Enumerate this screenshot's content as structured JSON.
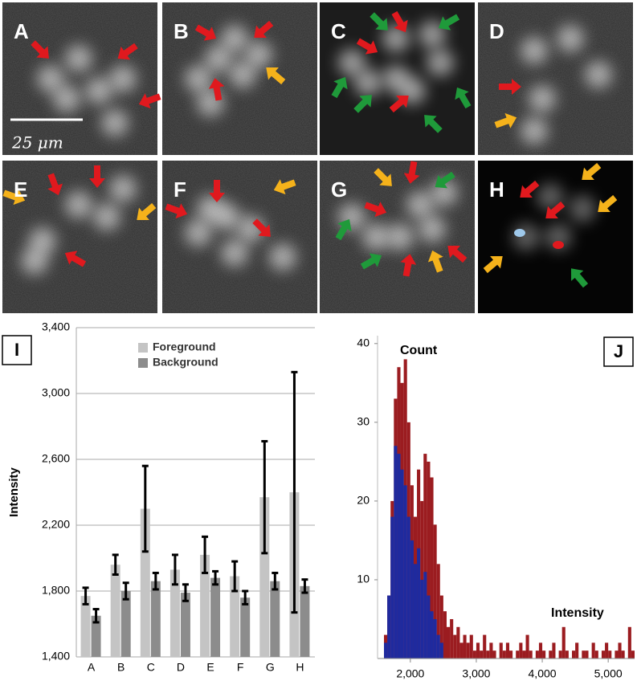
{
  "image_panels": {
    "labels": [
      "A",
      "B",
      "C",
      "D",
      "E",
      "F",
      "G",
      "H"
    ],
    "scale_bar": "25 μm"
  },
  "chart_data": [
    {
      "type": "bar",
      "panel_label": "I",
      "ylabel": "Intensity",
      "categories": [
        "A",
        "B",
        "C",
        "D",
        "E",
        "F",
        "G",
        "H"
      ],
      "series": [
        {
          "name": "Foreground",
          "color": "#c4c4c4",
          "values": [
            1770,
            1960,
            2300,
            1930,
            2020,
            1890,
            2370,
            2400
          ],
          "errors": [
            50,
            60,
            260,
            90,
            110,
            90,
            340,
            730
          ]
        },
        {
          "name": "Background",
          "color": "#8c8c8c",
          "values": [
            1650,
            1800,
            1860,
            1790,
            1880,
            1760,
            1860,
            1830
          ],
          "errors": [
            40,
            50,
            50,
            50,
            40,
            40,
            50,
            40
          ]
        }
      ],
      "ylim": [
        1400,
        3400
      ],
      "yticks": [
        {
          "value": 1400,
          "label": "1,400"
        },
        {
          "value": 1800,
          "label": "1,800"
        },
        {
          "value": 2200,
          "label": "2,200"
        },
        {
          "value": 2600,
          "label": "2,600"
        },
        {
          "value": 3000,
          "label": "3,000"
        },
        {
          "value": 3400,
          "label": "3,400"
        }
      ],
      "grid": true,
      "legend": "top"
    },
    {
      "type": "histogram",
      "panel_label": "J",
      "ylabel": "Count",
      "xlabel": "Intensity",
      "bins": [
        1600,
        1650,
        1700,
        1750,
        1800,
        1850,
        1900,
        1950,
        2000,
        2050,
        2100,
        2150,
        2200,
        2250,
        2300,
        2350,
        2400,
        2450,
        2500,
        2550,
        2600,
        2650,
        2700,
        2750,
        2800,
        2850,
        2900,
        2950,
        3000,
        3050,
        3100,
        3150,
        3200,
        3250,
        3300,
        3350,
        3400,
        3450,
        3500,
        3550,
        3600,
        3650,
        3700,
        3750,
        3800,
        3850,
        3900,
        3950,
        4000,
        4050,
        4100,
        4150,
        4200,
        4250,
        4300,
        4350,
        4400,
        4450,
        4500,
        4550,
        4600,
        4650,
        4700,
        4750,
        4800,
        4850,
        4900,
        4950,
        5000,
        5050,
        5100,
        5150,
        5200,
        5250,
        5300,
        5350,
        5400
      ],
      "series": [
        {
          "color": "#9b1c20",
          "values": [
            3,
            8,
            20,
            33,
            37,
            35,
            38,
            30,
            22,
            18,
            24,
            20,
            26,
            25,
            23,
            17,
            12,
            8,
            6,
            4,
            5,
            3,
            4,
            2,
            3,
            2,
            3,
            1,
            2,
            1,
            3,
            1,
            2,
            1,
            0,
            2,
            1,
            2,
            1,
            0,
            1,
            2,
            1,
            3,
            1,
            0,
            1,
            2,
            1,
            0,
            1,
            2,
            0,
            1,
            4,
            1,
            0,
            1,
            2,
            0,
            1,
            1,
            0,
            2,
            1,
            0,
            1,
            2,
            1,
            0,
            1,
            2,
            1,
            0,
            4,
            1
          ]
        },
        {
          "color": "#1f2a9e",
          "values": [
            2,
            8,
            18,
            27,
            26,
            24,
            22,
            18,
            15,
            12,
            14,
            10,
            11,
            8,
            6,
            5,
            3,
            2,
            0,
            0,
            0,
            0,
            0,
            0,
            0,
            0,
            0,
            0,
            0,
            0,
            0,
            0,
            0,
            0,
            0,
            0,
            0,
            0,
            0,
            0,
            0,
            0,
            0,
            0,
            0,
            0,
            0,
            0,
            0,
            0,
            0,
            0,
            0,
            0,
            0,
            0,
            0,
            0,
            0,
            0,
            0,
            0,
            0,
            0,
            0,
            0,
            0,
            0,
            0,
            0,
            0,
            0,
            0,
            0,
            0,
            0
          ]
        }
      ],
      "xlim": [
        1600,
        5400
      ],
      "ylim": [
        0,
        41
      ],
      "xticks": [
        {
          "value": 2000,
          "label": "2,000"
        },
        {
          "value": 3000,
          "label": "3,000"
        },
        {
          "value": 4000,
          "label": "4,000"
        },
        {
          "value": 5000,
          "label": "5,000"
        }
      ],
      "yticks": [
        10,
        20,
        30,
        40
      ]
    }
  ]
}
